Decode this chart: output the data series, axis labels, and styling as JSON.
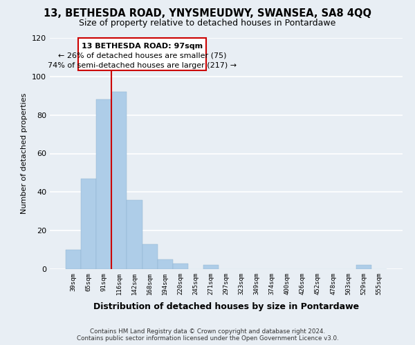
{
  "title": "13, BETHESDA ROAD, YNYSMEUDWY, SWANSEA, SA8 4QQ",
  "subtitle": "Size of property relative to detached houses in Pontardawe",
  "xlabel": "Distribution of detached houses by size in Pontardawe",
  "ylabel": "Number of detached properties",
  "bar_labels": [
    "39sqm",
    "65sqm",
    "91sqm",
    "116sqm",
    "142sqm",
    "168sqm",
    "194sqm",
    "220sqm",
    "245sqm",
    "271sqm",
    "297sqm",
    "323sqm",
    "349sqm",
    "374sqm",
    "400sqm",
    "426sqm",
    "452sqm",
    "478sqm",
    "503sqm",
    "529sqm",
    "555sqm"
  ],
  "bar_values": [
    10,
    47,
    88,
    92,
    36,
    13,
    5,
    3,
    0,
    2,
    0,
    0,
    0,
    0,
    0,
    0,
    0,
    0,
    0,
    2,
    0
  ],
  "bar_color": "#aecde8",
  "bar_edge_color": "#aecde8",
  "property_line_color": "#cc0000",
  "ylim": [
    0,
    120
  ],
  "yticks": [
    0,
    20,
    40,
    60,
    80,
    100,
    120
  ],
  "annotation_title": "13 BETHESDA ROAD: 97sqm",
  "annotation_line1": "← 26% of detached houses are smaller (75)",
  "annotation_line2": "74% of semi-detached houses are larger (217) →",
  "annotation_box_color": "#ffffff",
  "annotation_box_edge_color": "#cc0000",
  "footer_line1": "Contains HM Land Registry data © Crown copyright and database right 2024.",
  "footer_line2": "Contains public sector information licensed under the Open Government Licence v3.0.",
  "background_color": "#e8eef4",
  "grid_color": "#ffffff",
  "title_fontsize": 10.5,
  "subtitle_fontsize": 9
}
